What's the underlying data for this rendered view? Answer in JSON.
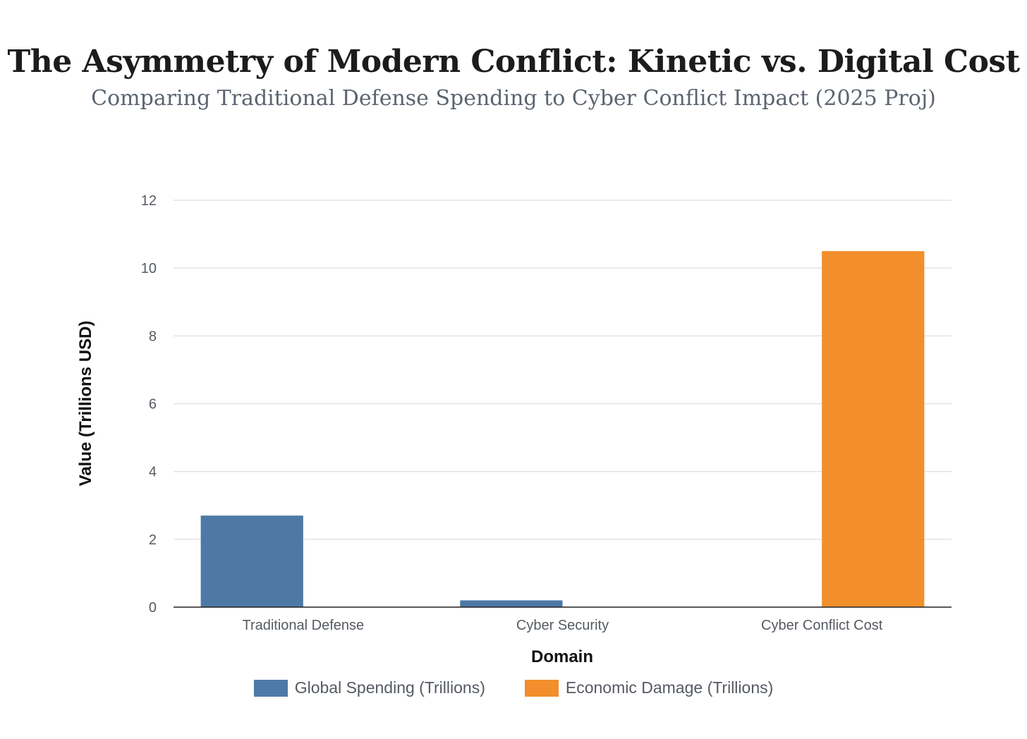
{
  "colors": {
    "global_spending": "#4e79a7",
    "economic_damage": "#f28e2b",
    "grid": "#e3e3e3",
    "axis": "#222222",
    "tick_text": "#555a62",
    "label_text": "#111111"
  },
  "chart_data": {
    "type": "bar",
    "title": "The Asymmetry of Modern Conflict: Kinetic vs. Digital Cost",
    "subtitle": "Comparing Traditional Defense Spending to Cyber Conflict Impact (2025 Proj)",
    "xlabel": "Domain",
    "ylabel": "Value (Trillions USD)",
    "categories": [
      "Traditional Defense",
      "Cyber Security",
      "Cyber Conflict Cost"
    ],
    "series": [
      {
        "name": "Global Spending (Trillions)",
        "color_key": "global_spending",
        "values": [
          2.7,
          0.2,
          null
        ]
      },
      {
        "name": "Economic Damage (Trillions)",
        "color_key": "economic_damage",
        "values": [
          null,
          null,
          10.5
        ]
      }
    ],
    "ylim": [
      0,
      12
    ],
    "yticks": [
      "0",
      "2",
      "4",
      "6",
      "8",
      "10",
      "12"
    ],
    "grid": true,
    "legend_position": "bottom-center"
  }
}
